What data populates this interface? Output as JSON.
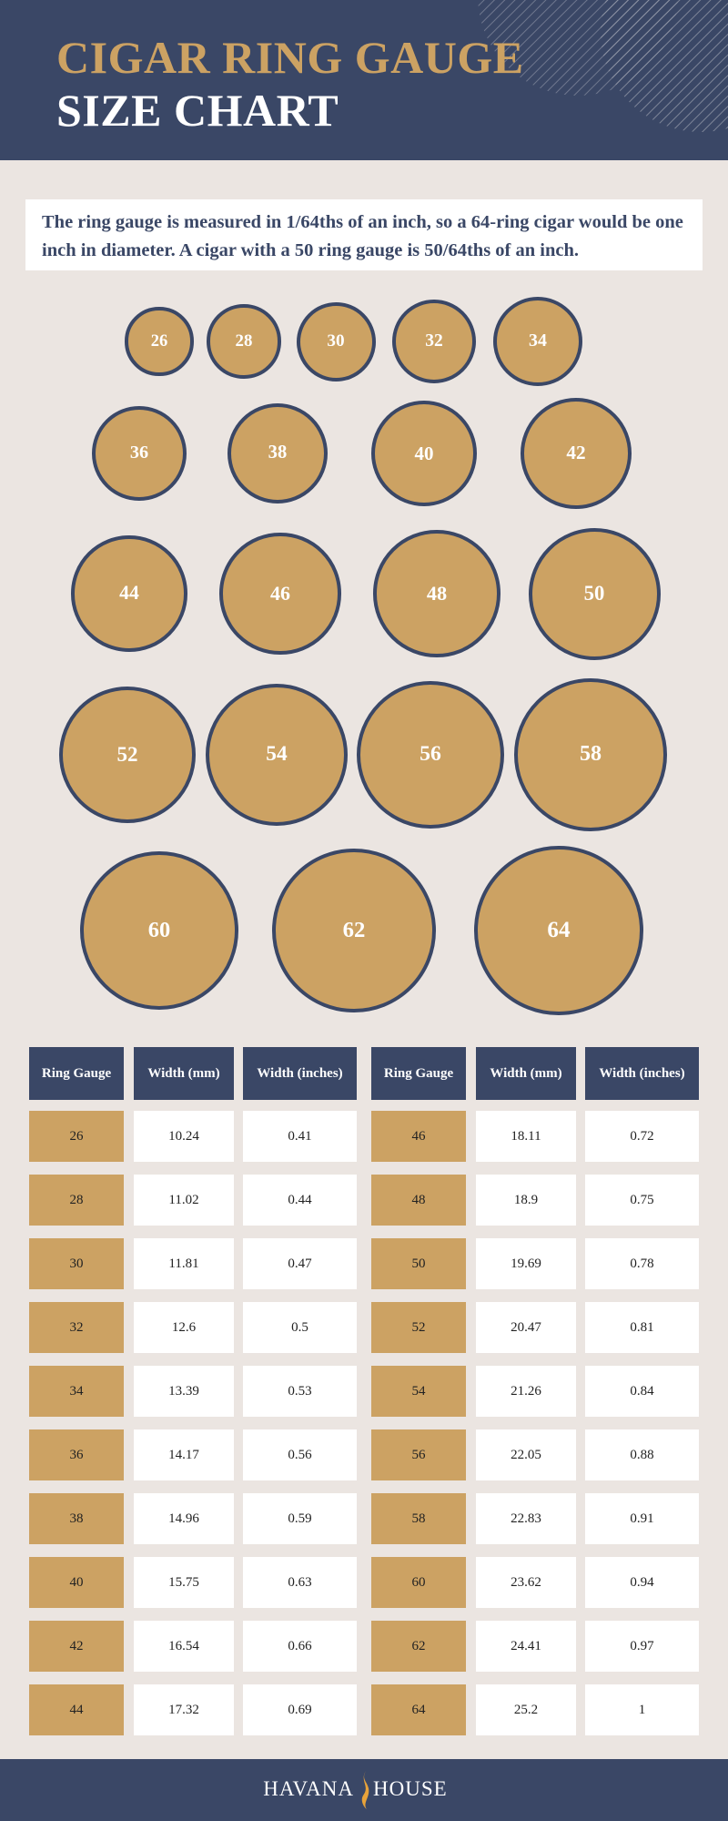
{
  "header": {
    "title_line1": "CIGAR RING GAUGE",
    "title_line2": "SIZE CHART"
  },
  "intro": "The ring gauge is measured in 1/64ths of an inch, so a 64-ring cigar would be one inch in diameter. A cigar with a 50 ring gauge is 50/64ths of an inch.",
  "gauge_rows": [
    [
      26,
      28,
      30,
      32,
      34
    ],
    [
      36,
      38,
      40,
      42
    ],
    [
      44,
      46,
      48,
      50
    ],
    [
      52,
      54,
      56,
      58
    ],
    [
      60,
      62,
      64
    ]
  ],
  "table": {
    "columns": [
      "Ring Gauge",
      "Width (mm)",
      "Width (inches)"
    ],
    "left_rows": [
      [
        26,
        10.24,
        0.41
      ],
      [
        28,
        11.02,
        0.44
      ],
      [
        30,
        11.81,
        0.47
      ],
      [
        32,
        12.6,
        0.5
      ],
      [
        34,
        13.39,
        0.53
      ],
      [
        36,
        14.17,
        0.56
      ],
      [
        38,
        14.96,
        0.59
      ],
      [
        40,
        15.75,
        0.63
      ],
      [
        42,
        16.54,
        0.66
      ],
      [
        44,
        17.32,
        0.69
      ]
    ],
    "right_rows": [
      [
        46,
        18.11,
        0.72
      ],
      [
        48,
        18.9,
        0.75
      ],
      [
        50,
        19.69,
        0.78
      ],
      [
        52,
        20.47,
        0.81
      ],
      [
        54,
        21.26,
        0.84
      ],
      [
        56,
        22.05,
        0.88
      ],
      [
        58,
        22.83,
        0.91
      ],
      [
        60,
        23.62,
        0.94
      ],
      [
        62,
        24.41,
        0.97
      ],
      [
        64,
        25.2,
        1
      ]
    ]
  },
  "footer": {
    "brand_left": "HAVANA",
    "brand_right": "HOUSE"
  }
}
